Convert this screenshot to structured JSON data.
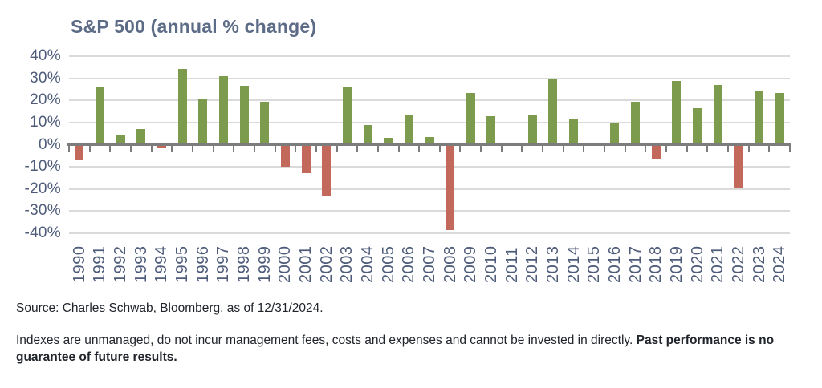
{
  "style": {
    "background": "#ffffff",
    "title_color": "#5c6b86",
    "axis_text": "#4e5c7a",
    "grid_color": "#dadada",
    "axis_color": "#7c7c7c",
    "body_text": "#20242b",
    "positive": "#7d9b4d",
    "negative": "#c2695b"
  },
  "chart_data": {
    "type": "bar",
    "title": "S&P 500 (annual % change)",
    "xlabel": "",
    "ylabel": "",
    "ylim": [
      -40,
      40
    ],
    "ytick_step": 10,
    "ytick_suffix": "%",
    "grid": true,
    "legend_position": "none",
    "categories": [
      "1990",
      "1991",
      "1992",
      "1993",
      "1994",
      "1995",
      "1996",
      "1997",
      "1998",
      "1999",
      "2000",
      "2001",
      "2002",
      "2003",
      "2004",
      "2005",
      "2006",
      "2007",
      "2008",
      "2009",
      "2010",
      "2011",
      "2012",
      "2013",
      "2014",
      "2015",
      "2016",
      "2017",
      "2018",
      "2019",
      "2020",
      "2021",
      "2022",
      "2023",
      "2024"
    ],
    "values": [
      -6.6,
      26.3,
      4.5,
      7.1,
      -1.5,
      34.1,
      20.3,
      31.0,
      26.7,
      19.5,
      -10.1,
      -13.0,
      -23.4,
      26.4,
      9.0,
      3.0,
      13.6,
      3.5,
      -38.5,
      23.5,
      12.8,
      0.0,
      13.4,
      29.6,
      11.4,
      -0.7,
      9.5,
      19.4,
      -6.2,
      28.9,
      16.3,
      26.9,
      -19.4,
      24.2,
      23.3
    ],
    "colors": {
      "positive": "#7d9b4d",
      "negative": "#c2695b"
    }
  },
  "footer": {
    "source": "Source: Charles Schwab, Bloomberg, as of 12/31/2024.",
    "disclaimer_regular": "Indexes are unmanaged, do not incur management fees, costs and expenses and cannot be invested in directly. ",
    "disclaimer_bold": "Past performance is no guarantee of future results."
  }
}
